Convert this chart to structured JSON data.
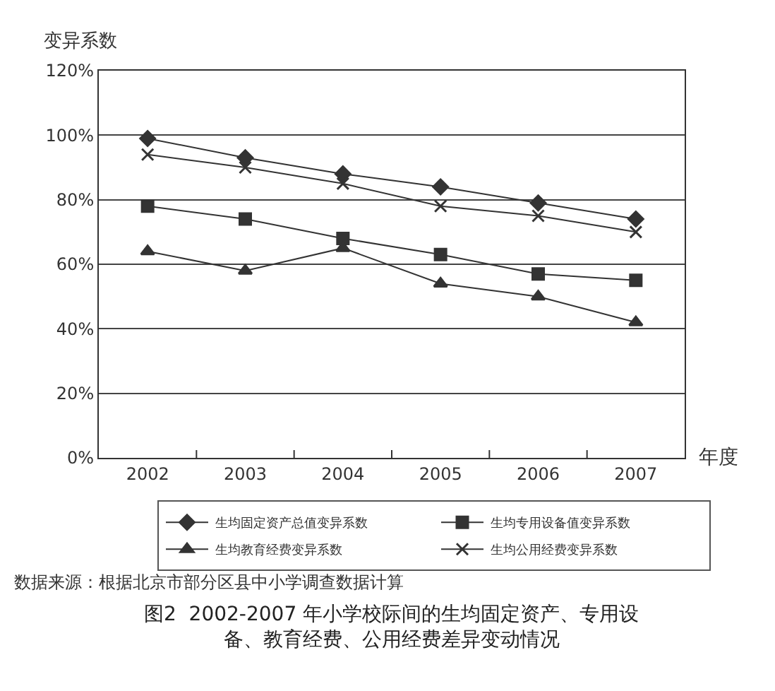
{
  "chart_data": {
    "type": "line",
    "title": "图2  2002-2007 年小学校际间的生均固定资产、专用设备、教育经费、公用经费差异变动情况",
    "xlabel": "年度",
    "ylabel": "变异系数",
    "categories": [
      "2002",
      "2003",
      "2004",
      "2005",
      "2006",
      "2007"
    ],
    "series": [
      {
        "name": "生均固定资产总值变异系数",
        "color": "#333333",
        "marker": "diamond",
        "values": [
          99,
          93,
          88,
          84,
          79,
          74
        ]
      },
      {
        "name": "生均专用设备值变异系数",
        "color": "#333333",
        "marker": "square",
        "values": [
          78,
          74,
          68,
          63,
          57,
          55
        ]
      },
      {
        "name": "生均教育经费变异系数",
        "color": "#333333",
        "marker": "triangle",
        "values": [
          64,
          58,
          65,
          54,
          50,
          42
        ]
      },
      {
        "name": "生均公用经费变异系数",
        "color": "#333333",
        "marker": "cross",
        "values": [
          94,
          90,
          85,
          78,
          75,
          70
        ]
      }
    ],
    "ylim": [
      0,
      120
    ],
    "yticks": [
      {
        "value": 0,
        "label": "0%"
      },
      {
        "value": 20,
        "label": "20%"
      },
      {
        "value": 40,
        "label": "40%"
      },
      {
        "value": 60,
        "label": "60%"
      },
      {
        "value": 80,
        "label": "80%"
      },
      {
        "value": 100,
        "label": "100%"
      },
      {
        "value": 120,
        "label": "120%"
      }
    ],
    "grid": "y",
    "legend": "bottom",
    "line_style": "solid",
    "annotations": [
      "数据来源：根据北京市部分区县中小学调查数据计算"
    ]
  }
}
